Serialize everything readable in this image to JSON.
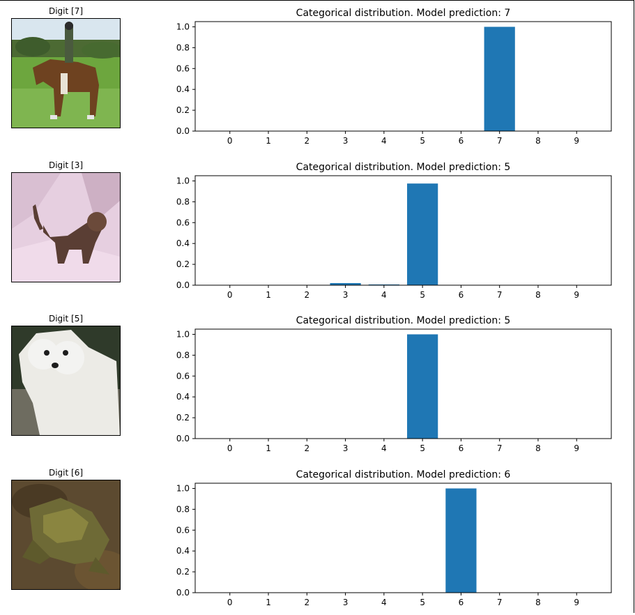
{
  "colors": {
    "bar": "#1f77b4",
    "axis": "#000000"
  },
  "panels": [
    {
      "image_label": "Digit [7]",
      "image_icon": "horse-with-rider-photo",
      "chart_data": {
        "type": "bar",
        "title": "Categorical distribution. Model prediction: 7",
        "categories": [
          "0",
          "1",
          "2",
          "3",
          "4",
          "5",
          "6",
          "7",
          "8",
          "9"
        ],
        "values": [
          0,
          0,
          0,
          0,
          0,
          0,
          0,
          1.0,
          0,
          0
        ],
        "ylim": [
          0,
          1.05
        ],
        "yticks": [
          "0.0",
          "0.2",
          "0.4",
          "0.6",
          "0.8",
          "1.0"
        ],
        "grid": false
      }
    },
    {
      "image_label": "Digit [3]",
      "image_icon": "cat-photo",
      "chart_data": {
        "type": "bar",
        "title": "Categorical distribution. Model prediction: 5",
        "categories": [
          "0",
          "1",
          "2",
          "3",
          "4",
          "5",
          "6",
          "7",
          "8",
          "9"
        ],
        "values": [
          0,
          0,
          0,
          0.02,
          0.007,
          0.975,
          0,
          0,
          0,
          0
        ],
        "ylim": [
          0,
          1.05
        ],
        "yticks": [
          "0.0",
          "0.2",
          "0.4",
          "0.6",
          "0.8",
          "1.0"
        ],
        "grid": false
      }
    },
    {
      "image_label": "Digit [5]",
      "image_icon": "white-dog-photo",
      "chart_data": {
        "type": "bar",
        "title": "Categorical distribution. Model prediction: 5",
        "categories": [
          "0",
          "1",
          "2",
          "3",
          "4",
          "5",
          "6",
          "7",
          "8",
          "9"
        ],
        "values": [
          0,
          0,
          0,
          0,
          0,
          1.0,
          0,
          0,
          0,
          0
        ],
        "ylim": [
          0,
          1.05
        ],
        "yticks": [
          "0.0",
          "0.2",
          "0.4",
          "0.6",
          "0.8",
          "1.0"
        ],
        "grid": false
      }
    },
    {
      "image_label": "Digit [6]",
      "image_icon": "frog-photo",
      "chart_data": {
        "type": "bar",
        "title": "Categorical distribution. Model prediction: 6",
        "categories": [
          "0",
          "1",
          "2",
          "3",
          "4",
          "5",
          "6",
          "7",
          "8",
          "9"
        ],
        "values": [
          0,
          0,
          0,
          0,
          0,
          0,
          1.0,
          0,
          0,
          0
        ],
        "ylim": [
          0,
          1.05
        ],
        "yticks": [
          "0.0",
          "0.2",
          "0.4",
          "0.6",
          "0.8",
          "1.0"
        ],
        "grid": false
      }
    }
  ]
}
